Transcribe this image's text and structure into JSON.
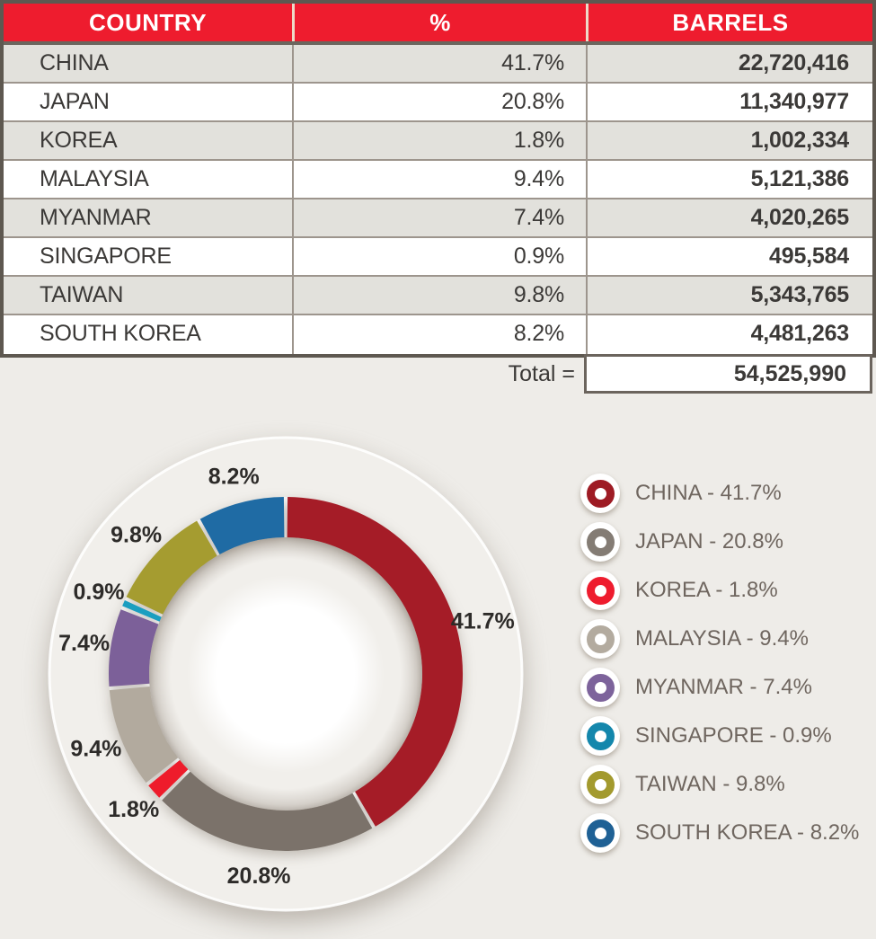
{
  "table": {
    "headers": [
      "COUNTRY",
      "%",
      "BARRELS"
    ],
    "rows": [
      {
        "country": "CHINA",
        "percent": "41.7%",
        "barrels": "22,720,416"
      },
      {
        "country": "JAPAN",
        "percent": "20.8%",
        "barrels": "11,340,977"
      },
      {
        "country": "KOREA",
        "percent": "1.8%",
        "barrels": "1,002,334"
      },
      {
        "country": "MALAYSIA",
        "percent": "9.4%",
        "barrels": "5,121,386"
      },
      {
        "country": "MYANMAR",
        "percent": "7.4%",
        "barrels": "4,020,265"
      },
      {
        "country": "SINGAPORE",
        "percent": "0.9%",
        "barrels": "495,584"
      },
      {
        "country": "TAIWAN",
        "percent": "9.8%",
        "barrels": "5,343,765"
      },
      {
        "country": "SOUTH KOREA",
        "percent": "8.2%",
        "barrels": "4,481,263"
      }
    ],
    "total_label": "Total =",
    "total_value": "54,525,990"
  },
  "chart_data": {
    "type": "pie",
    "subtype": "donut",
    "title": "",
    "categories": [
      "CHINA",
      "JAPAN",
      "KOREA",
      "MALAYSIA",
      "MYANMAR",
      "SINGAPORE",
      "TAIWAN",
      "SOUTH KOREA"
    ],
    "values": [
      41.7,
      20.8,
      1.8,
      9.4,
      7.4,
      0.9,
      9.8,
      8.2
    ],
    "labels": [
      "41.7%",
      "20.8%",
      "1.8%",
      "9.4%",
      "7.4%",
      "0.9%",
      "9.8%",
      "8.2%"
    ],
    "colors": [
      "#a51c27",
      "#7b726a",
      "#ee1c2b",
      "#b2aa9e",
      "#7c6099",
      "#1b9ec0",
      "#a59c30",
      "#1f6ba4"
    ],
    "legend_labels": [
      "CHINA - 41.7%",
      "JAPAN - 20.8%",
      "KOREA - 1.8%",
      "MALAYSIA - 9.4%",
      "MYANMAR - 7.4%",
      "SINGAPORE - 0.9%",
      "TAIWAN - 9.8%",
      "SOUTH KOREA - 8.2%"
    ],
    "legend_colors": [
      "#9e1b24",
      "#847c74",
      "#ee1c2e",
      "#b3ab9f",
      "#7d639b",
      "#1487ac",
      "#a39a2e",
      "#1f6195"
    ],
    "legend_position": "right",
    "start_angle_deg": 0,
    "direction": "clockwise"
  },
  "colors": {
    "page_background": "#eeece8",
    "header_red": "#ee1c2e",
    "row_alt_gray": "#e2e1dc",
    "row_white": "#ffffff",
    "table_border": "#5e5850",
    "grid_line": "#9d958d",
    "table_text": "#3b3937",
    "chart_plate": "#f1efeb",
    "slice_label_text": "#2d2b29",
    "legend_text": "#6f665f"
  }
}
